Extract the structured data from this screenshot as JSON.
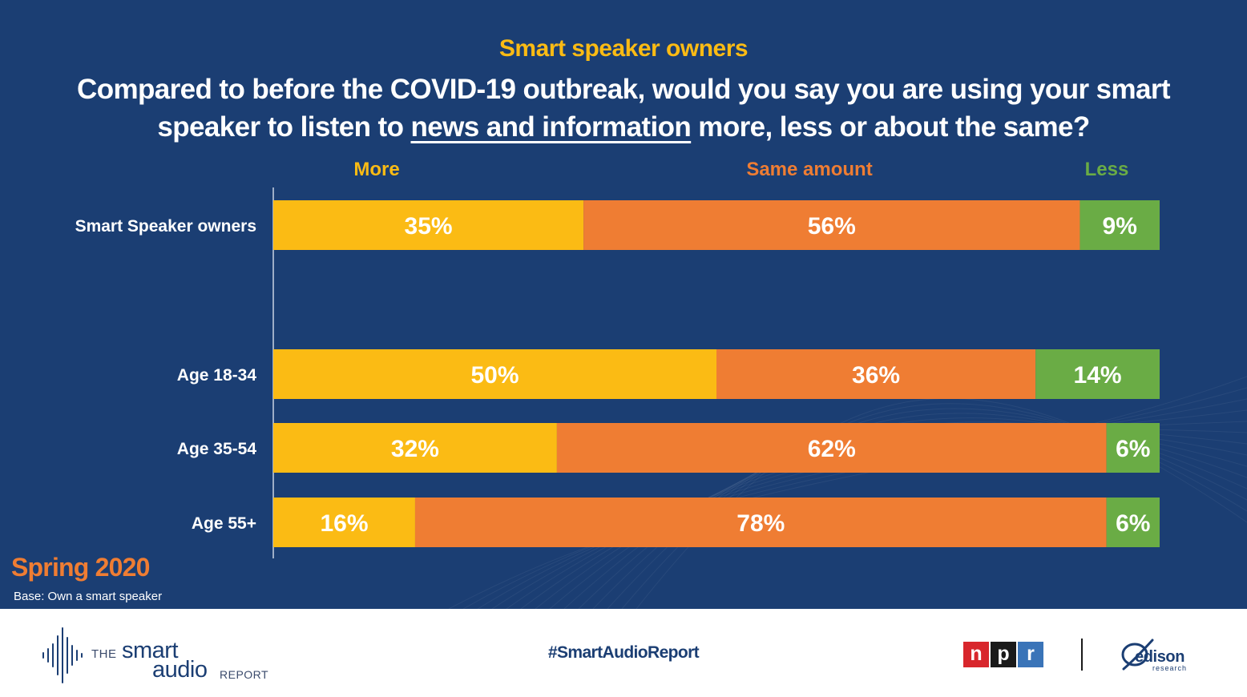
{
  "header": {
    "subtitle": "Smart speaker owners",
    "question_before": "Compared to before the COVID-19 outbreak, would you say you are using your smart speaker to listen to ",
    "question_emphasis": "news and information",
    "question_after": " more, less or about the same?"
  },
  "chart_data": {
    "type": "bar",
    "orientation": "horizontal",
    "stacked": true,
    "categories": [
      "Smart Speaker owners",
      "Age 18-34",
      "Age 35-54",
      "Age 55+"
    ],
    "series": [
      {
        "name": "More",
        "values": [
          35,
          50,
          32,
          16
        ],
        "color": "#fbbb14"
      },
      {
        "name": "Same amount",
        "values": [
          56,
          36,
          62,
          78
        ],
        "color": "#ef7d33"
      },
      {
        "name": "Less",
        "values": [
          9,
          14,
          6,
          6
        ],
        "color": "#6aac45"
      }
    ],
    "value_suffix": "%",
    "xlim": [
      0,
      100
    ],
    "legend_position": "top",
    "grid": false
  },
  "footer_left": {
    "period": "Spring 2020",
    "base_note": "Base: Own a smart speaker"
  },
  "logos": {
    "sar_the": "THE",
    "sar_smart": "smart",
    "sar_audio": "audio",
    "sar_report": "REPORT",
    "hashtag": "#SmartAudioReport",
    "npr_n": "n",
    "npr_p": "p",
    "npr_r": "r",
    "edison_word": "edison",
    "edison_sub": "research"
  },
  "colors": {
    "background": "#1b3e73",
    "more": "#fbbb14",
    "same": "#ef7d33",
    "less": "#6aac45",
    "text": "#ffffff"
  }
}
